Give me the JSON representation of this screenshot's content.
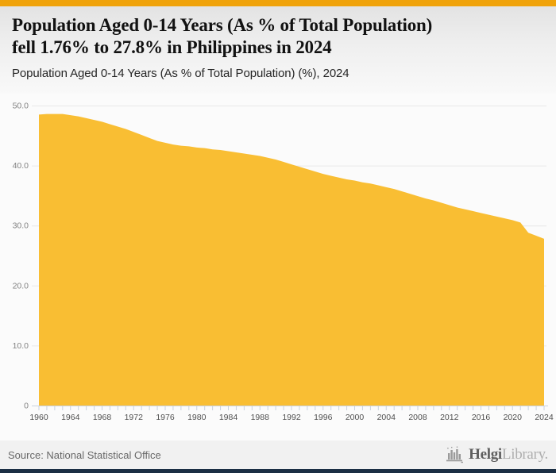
{
  "header": {
    "title_line1": "Population Aged 0-14 Years (As % of Total Population)",
    "title_line2": "fell 1.76% to 27.8% in Philippines in 2024",
    "subtitle": "Population Aged 0-14 Years (As % of Total Population) (%), 2024"
  },
  "footer": {
    "source": "Source: National Statistical Office",
    "logo_text_primary": "Helgi",
    "logo_text_secondary": "Library."
  },
  "colors": {
    "accent_bar": "#F0A30B",
    "area_fill": "#F9BE33",
    "gridline": "#E8E8E8",
    "axis": "#C9D2DF",
    "y_label": "#828282",
    "x_label": "#4f4f4f",
    "bottom_bar": "#1B2F44",
    "logo_gray": "#9a9a9a"
  },
  "chart_data": {
    "type": "area",
    "title": "Population Aged 0-14 Years (As % of Total Population) (%), 2024",
    "xlabel": "",
    "ylabel": "",
    "grid": "horizontal",
    "legend": "none",
    "ylim": [
      0,
      50
    ],
    "series_name": "Population Aged 0-14 Years (As % of Total Population) (%)",
    "x": [
      1960,
      1961,
      1962,
      1963,
      1964,
      1965,
      1966,
      1967,
      1968,
      1969,
      1970,
      1971,
      1972,
      1973,
      1974,
      1975,
      1976,
      1977,
      1978,
      1979,
      1980,
      1981,
      1982,
      1983,
      1984,
      1985,
      1986,
      1987,
      1988,
      1989,
      1990,
      1991,
      1992,
      1993,
      1994,
      1995,
      1996,
      1997,
      1998,
      1999,
      2000,
      2001,
      2002,
      2003,
      2004,
      2005,
      2006,
      2007,
      2008,
      2009,
      2010,
      2011,
      2012,
      2013,
      2014,
      2015,
      2016,
      2017,
      2018,
      2019,
      2020,
      2021,
      2022,
      2023,
      2024
    ],
    "values": [
      48.5,
      48.6,
      48.6,
      48.6,
      48.4,
      48.2,
      47.9,
      47.6,
      47.3,
      46.9,
      46.5,
      46.1,
      45.6,
      45.1,
      44.6,
      44.1,
      43.8,
      43.5,
      43.3,
      43.2,
      43.0,
      42.9,
      42.7,
      42.6,
      42.4,
      42.2,
      42.0,
      41.8,
      41.6,
      41.3,
      41.0,
      40.6,
      40.2,
      39.8,
      39.4,
      39.0,
      38.6,
      38.3,
      38.0,
      37.7,
      37.5,
      37.2,
      37.0,
      36.7,
      36.4,
      36.1,
      35.7,
      35.3,
      34.9,
      34.5,
      34.2,
      33.8,
      33.4,
      33.0,
      32.7,
      32.4,
      32.1,
      31.8,
      31.5,
      31.2,
      30.9,
      30.5,
      28.8,
      28.3,
      27.8
    ],
    "y_ticks": [
      {
        "value": 50,
        "label": "50.0"
      },
      {
        "value": 40,
        "label": "40.0"
      },
      {
        "value": 30,
        "label": "30.0"
      },
      {
        "value": 20,
        "label": "20.0"
      },
      {
        "value": 10,
        "label": "10.0"
      },
      {
        "value": 0,
        "label": "0"
      }
    ],
    "x_tick_labels": [
      1960,
      1964,
      1968,
      1972,
      1976,
      1980,
      1984,
      1988,
      1992,
      1996,
      2000,
      2004,
      2008,
      2012,
      2016,
      2020,
      2024
    ]
  }
}
